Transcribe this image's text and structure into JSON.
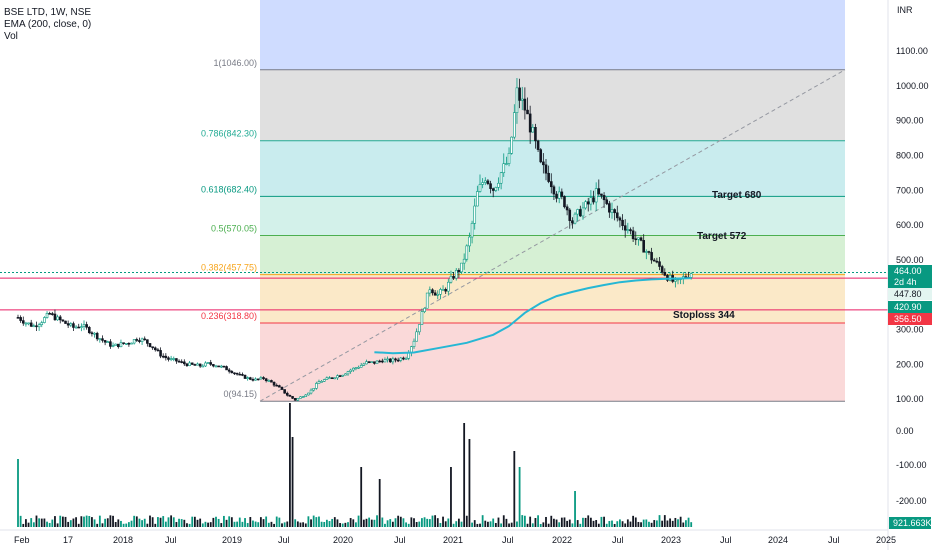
{
  "header": {
    "symbol": "BSE LTD, 1W, NSE",
    "indicator": "EMA (200, close, 0)",
    "volume_label": "Vol"
  },
  "currency": "INR",
  "chart_data": {
    "type": "candlestick",
    "title": "BSE LTD, 1W, NSE",
    "y_axis": {
      "unit": "INR",
      "ticks": [
        100,
        200,
        300,
        400,
        500,
        600,
        700,
        800,
        900,
        1000,
        1100
      ],
      "range": [
        80,
        1180
      ],
      "side": "right"
    },
    "x_axis": {
      "ticks": [
        "Feb",
        "17",
        "2018",
        "Jul",
        "2019",
        "Jul",
        "2020",
        "Jul",
        "2021",
        "Jul",
        "2022",
        "Jul",
        "2023",
        "Jul",
        "2024",
        "Jul",
        "2025"
      ]
    },
    "fibonacci": {
      "levels": [
        {
          "label": "1(1046.00)",
          "value": 1046.0,
          "color": "#787b86",
          "fill": "#e0e0e0"
        },
        {
          "label": "0.786(842.30)",
          "value": 842.3,
          "color": "#22ab94",
          "fill": "#c9ecee"
        },
        {
          "label": "0.618(682.40)",
          "value": 682.4,
          "color": "#089981",
          "fill": "#d3f1ea"
        },
        {
          "label": "0.5(570.05)",
          "value": 570.05,
          "color": "#4caf50",
          "fill": "#d6f0d4"
        },
        {
          "label": "0.382(457.75)",
          "value": 457.75,
          "color": "#f7a51c",
          "fill": "#fbe9c8"
        },
        {
          "label": "0.236(318.80)",
          "value": 318.8,
          "color": "#f23645",
          "fill": "#fad9d9"
        },
        {
          "label": "0(94.15)",
          "value": 94.15,
          "color": "#787b86",
          "fill": null
        }
      ],
      "extension_fill": "#cfdcff"
    },
    "horizontal_lines": [
      {
        "value": 447.8,
        "color": "#e91e63"
      },
      {
        "value": 356.5,
        "color": "#e91e63"
      }
    ],
    "current_price_line": {
      "value": 464.0,
      "color": "#089981"
    },
    "annotations": [
      {
        "text": "Target 680",
        "value": 690
      },
      {
        "text": "Target 572",
        "value": 572
      },
      {
        "text": "Stoploss 344",
        "value": 344
      }
    ],
    "price_labels": [
      {
        "text": "464.00",
        "sub": "2d 4h",
        "value": 464.0,
        "bg": "#089981",
        "color": "#ffffff"
      },
      {
        "text": "447.80",
        "value": 447.8,
        "bg": "#e3f5f1",
        "color": "#131722"
      },
      {
        "text": "420.90",
        "value": 420.9,
        "bg": "#089981",
        "color": "#ffffff"
      },
      {
        "text": "356.50",
        "value": 356.5,
        "bg": "#f23645",
        "color": "#ffffff"
      }
    ],
    "price_path": [
      [
        0,
        335
      ],
      [
        3,
        320
      ],
      [
        6,
        310
      ],
      [
        9,
        325
      ],
      [
        12,
        345
      ],
      [
        15,
        330
      ],
      [
        18,
        318
      ],
      [
        21,
        306
      ],
      [
        24,
        312
      ],
      [
        27,
        298
      ],
      [
        30,
        280
      ],
      [
        33,
        264
      ],
      [
        36,
        252
      ],
      [
        39,
        258
      ],
      [
        42,
        262
      ],
      [
        45,
        274
      ],
      [
        48,
        268
      ],
      [
        51,
        250
      ],
      [
        54,
        228
      ],
      [
        57,
        215
      ],
      [
        60,
        210
      ],
      [
        63,
        202
      ],
      [
        66,
        198
      ],
      [
        69,
        196
      ],
      [
        72,
        202
      ],
      [
        75,
        198
      ],
      [
        78,
        190
      ],
      [
        81,
        180
      ],
      [
        84,
        168
      ],
      [
        87,
        160
      ],
      [
        90,
        156
      ],
      [
        93,
        160
      ],
      [
        96,
        148
      ],
      [
        99,
        132
      ],
      [
        102,
        112
      ],
      [
        105,
        98
      ],
      [
        108,
        110
      ],
      [
        111,
        125
      ],
      [
        114,
        150
      ],
      [
        117,
        158
      ],
      [
        120,
        165
      ],
      [
        123,
        172
      ],
      [
        126,
        184
      ],
      [
        129,
        194
      ],
      [
        132,
        205
      ],
      [
        135,
        205
      ],
      [
        138,
        212
      ],
      [
        141,
        210
      ],
      [
        144,
        215
      ],
      [
        147,
        222
      ],
      [
        150,
        270
      ],
      [
        153,
        345
      ],
      [
        156,
        420
      ],
      [
        159,
        400
      ],
      [
        162,
        418
      ],
      [
        165,
        455
      ],
      [
        168,
        480
      ],
      [
        171,
        560
      ],
      [
        174,
        690
      ],
      [
        177,
        740
      ],
      [
        180,
        705
      ],
      [
        183,
        750
      ],
      [
        186,
        790
      ],
      [
        189,
        980
      ],
      [
        192,
        935
      ],
      [
        195,
        860
      ],
      [
        198,
        770
      ],
      [
        201,
        740
      ],
      [
        204,
        690
      ],
      [
        207,
        665
      ],
      [
        210,
        610
      ],
      [
        213,
        640
      ],
      [
        216,
        660
      ],
      [
        219,
        690
      ],
      [
        222,
        670
      ],
      [
        225,
        638
      ],
      [
        228,
        612
      ],
      [
        231,
        590
      ],
      [
        234,
        560
      ],
      [
        237,
        535
      ],
      [
        240,
        505
      ],
      [
        243,
        480
      ],
      [
        246,
        452
      ],
      [
        249,
        432
      ],
      [
        252,
        448
      ],
      [
        255,
        464
      ]
    ],
    "ema": [
      [
        135,
        235
      ],
      [
        142,
        232
      ],
      [
        150,
        234
      ],
      [
        160,
        248
      ],
      [
        170,
        262
      ],
      [
        180,
        285
      ],
      [
        186,
        310
      ],
      [
        192,
        348
      ],
      [
        198,
        376
      ],
      [
        204,
        396
      ],
      [
        210,
        408
      ],
      [
        216,
        419
      ],
      [
        222,
        428
      ],
      [
        228,
        436
      ],
      [
        234,
        441
      ],
      [
        240,
        444
      ],
      [
        246,
        446
      ],
      [
        252,
        447
      ],
      [
        255,
        447.8
      ]
    ],
    "volume": {
      "axis_ticks": [
        "0.00",
        "-100.00",
        "-200.00"
      ],
      "current_label": "921.663K",
      "spikes": [
        [
          0,
          34
        ],
        [
          103,
          62
        ],
        [
          104,
          45
        ],
        [
          130,
          30
        ],
        [
          137,
          24
        ],
        [
          164,
          30
        ],
        [
          169,
          52
        ],
        [
          171,
          44
        ],
        [
          188,
          38
        ],
        [
          190,
          30
        ],
        [
          211,
          18
        ]
      ]
    }
  }
}
